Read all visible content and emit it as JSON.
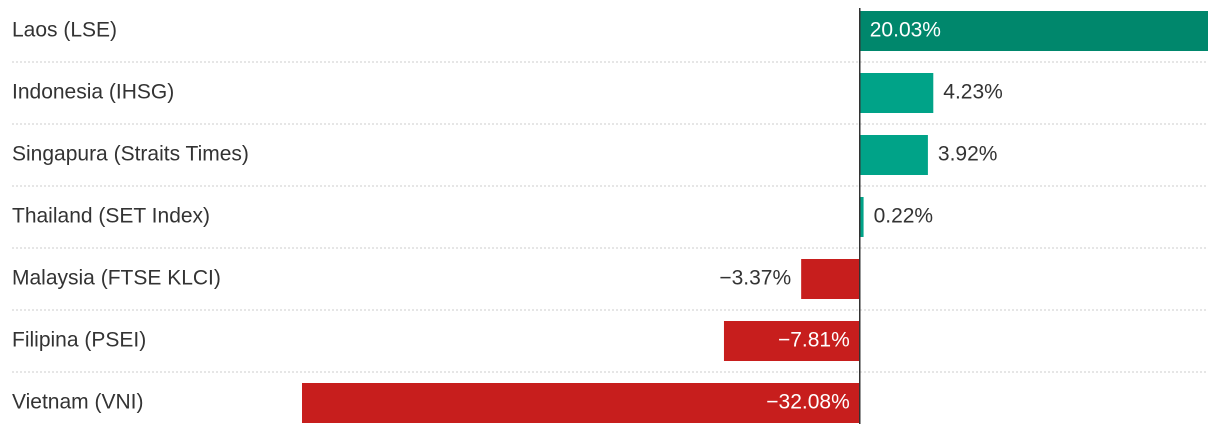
{
  "chart_data": {
    "type": "bar",
    "orientation": "horizontal",
    "categories": [
      "Laos (LSE)",
      "Indonesia (IHSG)",
      "Singapura (Straits Times)",
      "Thailand (SET Index)",
      "Malaysia (FTSE KLCI)",
      "Filipina (PSEI)",
      "Vietnam (VNI)"
    ],
    "values": [
      20.03,
      4.23,
      3.92,
      0.22,
      -3.37,
      -7.81,
      -32.08
    ],
    "value_labels": [
      "20.03%",
      "4.23%",
      "3.92%",
      "0.22%",
      "−3.37%",
      "−7.81%",
      "−32.08%"
    ],
    "colors": [
      "#00876c",
      "#00a388",
      "#00a388",
      "#00a388",
      "#c71e1d",
      "#c71e1d",
      "#c71e1d"
    ]
  }
}
